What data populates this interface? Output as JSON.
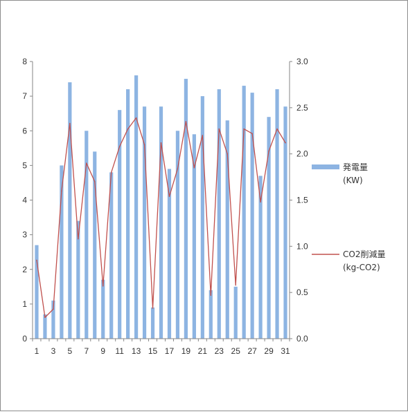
{
  "chart_data": {
    "type": "bar",
    "categories": [
      "1",
      "2",
      "3",
      "4",
      "5",
      "6",
      "7",
      "8",
      "9",
      "10",
      "11",
      "12",
      "13",
      "14",
      "15",
      "16",
      "17",
      "18",
      "19",
      "20",
      "21",
      "22",
      "23",
      "24",
      "25",
      "26",
      "27",
      "28",
      "29",
      "30",
      "31"
    ],
    "x_tick_labels": [
      "1",
      "3",
      "5",
      "7",
      "9",
      "11",
      "13",
      "15",
      "17",
      "19",
      "21",
      "23",
      "25",
      "27",
      "29",
      "31"
    ],
    "series": [
      {
        "name": "発電量",
        "unit": "(KW)",
        "chart": "bar",
        "axis": "left",
        "color": "#8DB4E2",
        "values": [
          2.7,
          0.7,
          1.1,
          5.0,
          7.4,
          3.4,
          6.0,
          5.4,
          1.7,
          4.8,
          6.6,
          7.2,
          7.6,
          6.7,
          0.9,
          6.7,
          4.9,
          6.0,
          7.5,
          5.9,
          7.0,
          1.4,
          7.2,
          6.3,
          1.5,
          7.3,
          7.1,
          4.7,
          6.4,
          7.2,
          6.7
        ]
      },
      {
        "name": "CO2削減量",
        "unit": "(kg-CO2)",
        "chart": "line",
        "axis": "right",
        "color": "#C0504D",
        "values": [
          0.85,
          0.23,
          0.32,
          1.6,
          2.33,
          1.08,
          1.9,
          1.7,
          0.57,
          1.8,
          2.08,
          2.27,
          2.39,
          2.1,
          0.33,
          2.12,
          1.54,
          1.84,
          2.35,
          1.85,
          2.2,
          0.47,
          2.27,
          2.0,
          0.58,
          2.27,
          2.22,
          1.48,
          2.03,
          2.27,
          2.12
        ]
      }
    ],
    "y_left": {
      "ylim": [
        0,
        8
      ],
      "ticks": [
        "0",
        "1",
        "2",
        "3",
        "4",
        "5",
        "6",
        "7",
        "8"
      ]
    },
    "y_right": {
      "ylim": [
        0,
        3.0
      ],
      "ticks": [
        "0.0",
        "0.5",
        "1.0",
        "1.5",
        "2.0",
        "2.5",
        "3.0"
      ]
    },
    "grid": false,
    "legend_position": "right",
    "title": "",
    "xlabel": "",
    "ylabel": ""
  }
}
